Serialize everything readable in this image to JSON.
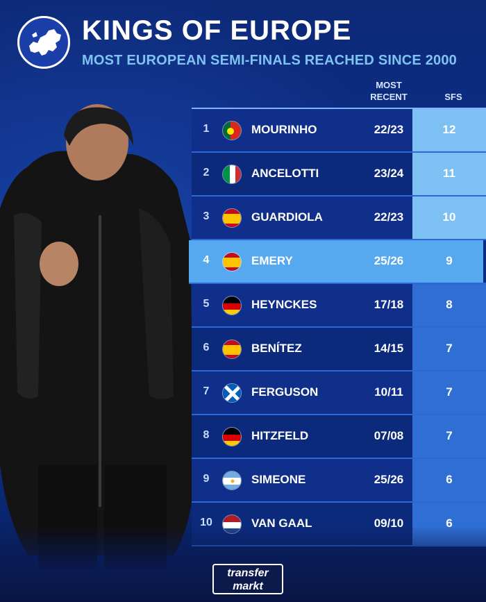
{
  "header": {
    "title": "KINGS OF EUROPE",
    "subtitle": "MOST EUROPEAN SEMI-FINALS REACHED SINCE 2000"
  },
  "columns": {
    "recent_line1": "MOST",
    "recent_line2": "RECENT",
    "sfs": "SFS"
  },
  "rows": [
    {
      "rank": "1",
      "flag": "portugal",
      "name": "MOURINHO",
      "recent": "22/23",
      "sfs": "12"
    },
    {
      "rank": "2",
      "flag": "italy",
      "name": "ANCELOTTI",
      "recent": "23/24",
      "sfs": "11"
    },
    {
      "rank": "3",
      "flag": "spain",
      "name": "GUARDIOLA",
      "recent": "22/23",
      "sfs": "10"
    },
    {
      "rank": "4",
      "flag": "spain",
      "name": "EMERY",
      "recent": "25/26",
      "sfs": "9"
    },
    {
      "rank": "5",
      "flag": "germany",
      "name": "HEYNCKES",
      "recent": "17/18",
      "sfs": "8"
    },
    {
      "rank": "6",
      "flag": "spain",
      "name": "BENÍTEZ",
      "recent": "14/15",
      "sfs": "7"
    },
    {
      "rank": "7",
      "flag": "scotland",
      "name": "FERGUSON",
      "recent": "10/11",
      "sfs": "7"
    },
    {
      "rank": "8",
      "flag": "germany",
      "name": "HITZFELD",
      "recent": "07/08",
      "sfs": "7"
    },
    {
      "rank": "9",
      "flag": "argentina",
      "name": "SIMEONE",
      "recent": "25/26",
      "sfs": "6"
    },
    {
      "rank": "10",
      "flag": "netherlands",
      "name": "VAN GAAL",
      "recent": "09/10",
      "sfs": "6"
    }
  ],
  "brand": {
    "line1": "transfer",
    "line2": "markt"
  },
  "colors": {
    "accent": "#7fc3f2",
    "highlight": "#56a9ee"
  }
}
